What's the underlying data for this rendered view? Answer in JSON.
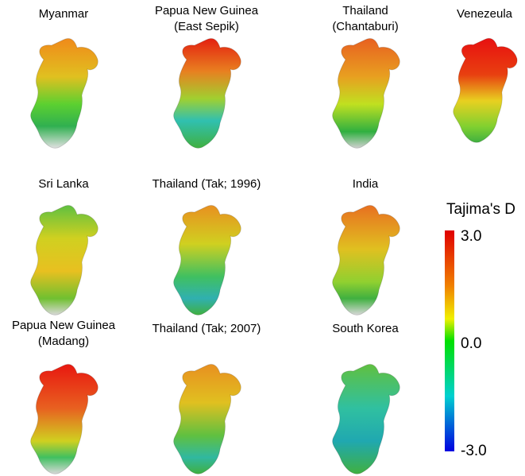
{
  "panels": [
    {
      "label": [
        "Myanmar"
      ]
    },
    {
      "label": [
        "Papua New Guinea",
        "(East Sepik)"
      ]
    },
    {
      "label": [
        "Thailand",
        "(Chantaburi)"
      ]
    },
    {
      "label": [
        "Venezeula"
      ]
    },
    {
      "label": [
        "Sri Lanka"
      ]
    },
    {
      "label": [
        "Thailand (Tak; 1996)"
      ]
    },
    {
      "label": [
        "India"
      ]
    },
    {
      "label": [
        "Papua New Guinea",
        "(Madang)"
      ]
    },
    {
      "label": [
        "Thailand (Tak; 2007)"
      ]
    },
    {
      "label": [
        "South Korea"
      ]
    }
  ],
  "colorbar": {
    "title": "Tajima's D",
    "range": [
      -3,
      3
    ],
    "ticks": [
      {
        "value": 3,
        "label": "3.0"
      },
      {
        "value": 0,
        "label": "0.0"
      },
      {
        "value": -3,
        "label": "-3.0"
      }
    ]
  }
}
